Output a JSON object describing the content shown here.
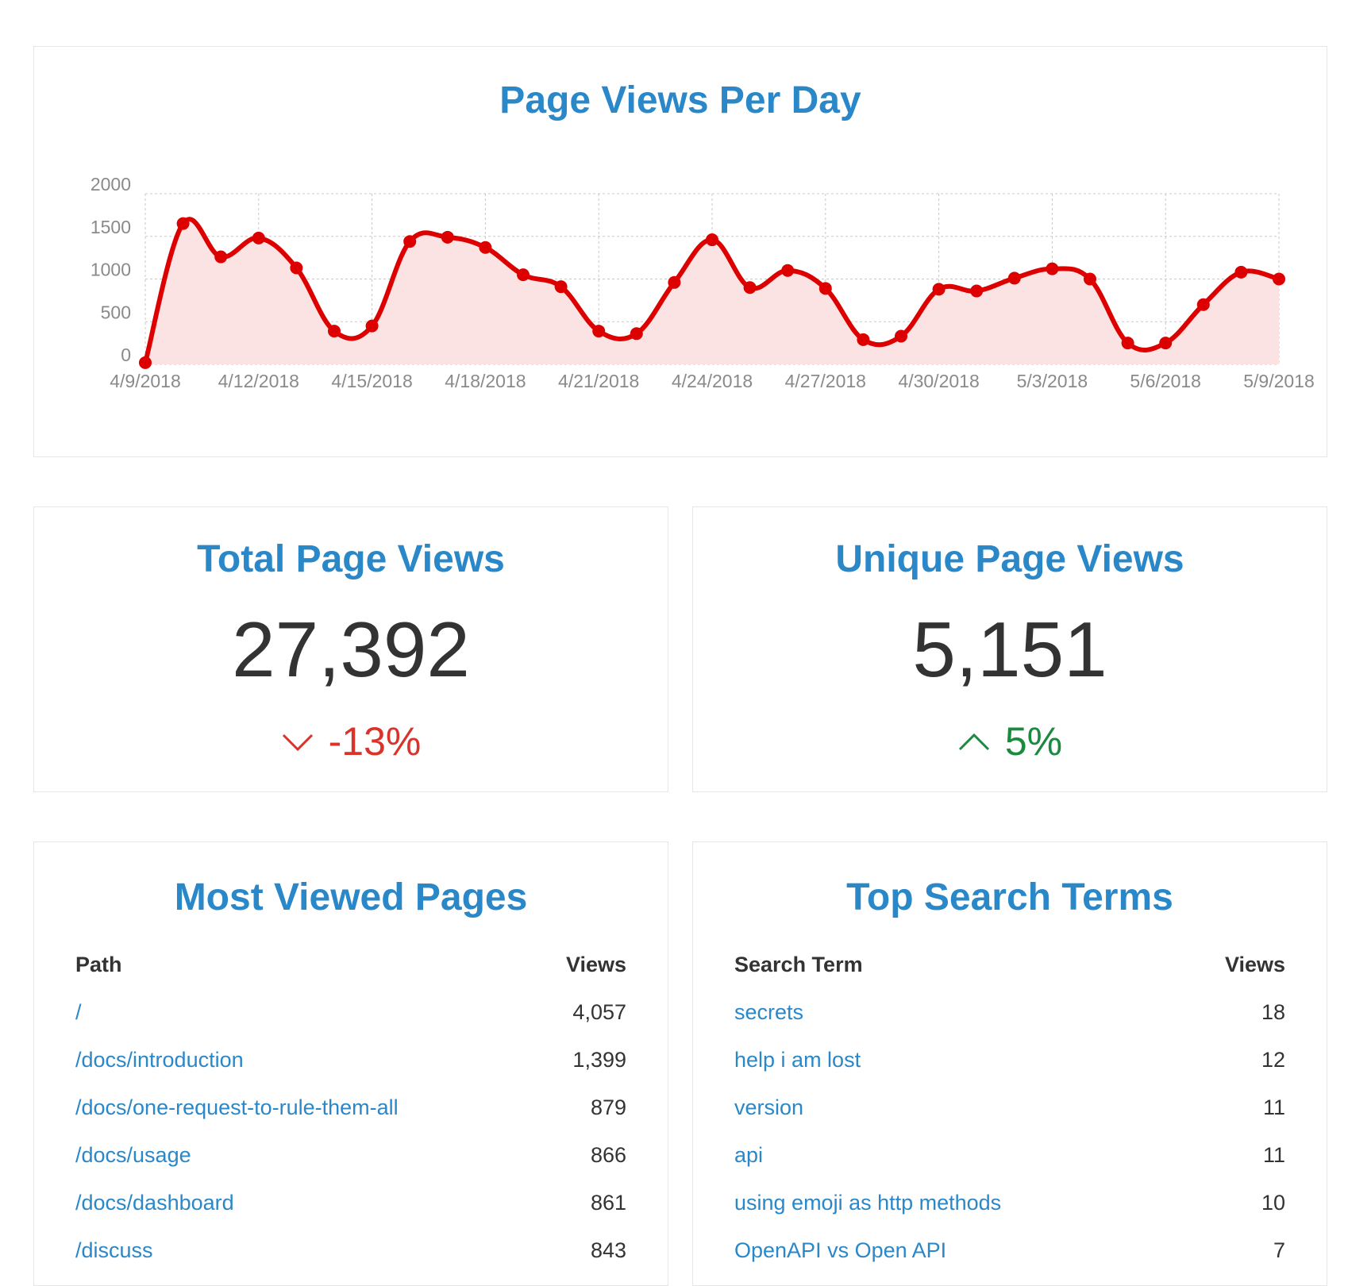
{
  "chart": {
    "title": "Page Views Per Day"
  },
  "chart_data": {
    "type": "area",
    "x": [
      "4/9/2018",
      "4/10/2018",
      "4/11/2018",
      "4/12/2018",
      "4/13/2018",
      "4/14/2018",
      "4/15/2018",
      "4/16/2018",
      "4/17/2018",
      "4/18/2018",
      "4/19/2018",
      "4/20/2018",
      "4/21/2018",
      "4/22/2018",
      "4/23/2018",
      "4/24/2018",
      "4/25/2018",
      "4/26/2018",
      "4/27/2018",
      "4/28/2018",
      "4/29/2018",
      "4/30/2018",
      "5/1/2018",
      "5/2/2018",
      "5/3/2018",
      "5/4/2018",
      "5/5/2018",
      "5/6/2018",
      "5/7/2018",
      "5/8/2018",
      "5/9/2018"
    ],
    "x_ticks": [
      "4/9/2018",
      "4/12/2018",
      "4/15/2018",
      "4/18/2018",
      "4/21/2018",
      "4/24/2018",
      "4/27/2018",
      "4/30/2018",
      "5/3/2018",
      "5/6/2018",
      "5/9/2018"
    ],
    "values": [
      20,
      1650,
      1260,
      1480,
      1130,
      390,
      450,
      1440,
      1490,
      1370,
      1050,
      910,
      390,
      360,
      960,
      1460,
      900,
      1100,
      890,
      290,
      330,
      880,
      860,
      1010,
      1120,
      1000,
      250,
      250,
      700,
      1080,
      1000
    ],
    "ylim": [
      0,
      2000
    ],
    "y_ticks": [
      0,
      500,
      1000,
      1500,
      2000
    ],
    "grid": true,
    "line_color": "#dd0000",
    "fill_color": "#fbe3e3",
    "xlabel": "",
    "ylabel": ""
  },
  "total": {
    "title": "Total Page Views",
    "value": "27,392",
    "change": "-13%",
    "direction": "down",
    "color": "#d9332a"
  },
  "unique": {
    "title": "Unique Page Views",
    "value": "5,151",
    "change": "5%",
    "direction": "up",
    "color": "#1a8a3e"
  },
  "pages": {
    "title": "Most Viewed Pages",
    "col_path": "Path",
    "col_views": "Views",
    "rows": [
      {
        "path": "/",
        "views": "4,057"
      },
      {
        "path": "/docs/introduction",
        "views": "1,399"
      },
      {
        "path": "/docs/one-request-to-rule-them-all",
        "views": "879"
      },
      {
        "path": "/docs/usage",
        "views": "866"
      },
      {
        "path": "/docs/dashboard",
        "views": "861"
      },
      {
        "path": "/discuss",
        "views": "843"
      }
    ]
  },
  "search": {
    "title": "Top Search Terms",
    "col_term": "Search Term",
    "col_views": "Views",
    "rows": [
      {
        "term": "secrets",
        "views": "18"
      },
      {
        "term": "help i am lost",
        "views": "12"
      },
      {
        "term": "version",
        "views": "11"
      },
      {
        "term": "api",
        "views": "11"
      },
      {
        "term": "using emoji as http methods",
        "views": "10"
      },
      {
        "term": "OpenAPI vs Open API",
        "views": "7"
      }
    ]
  },
  "colors": {
    "accent": "#2a87c8",
    "text": "#333333",
    "border": "#e6e6e6"
  }
}
